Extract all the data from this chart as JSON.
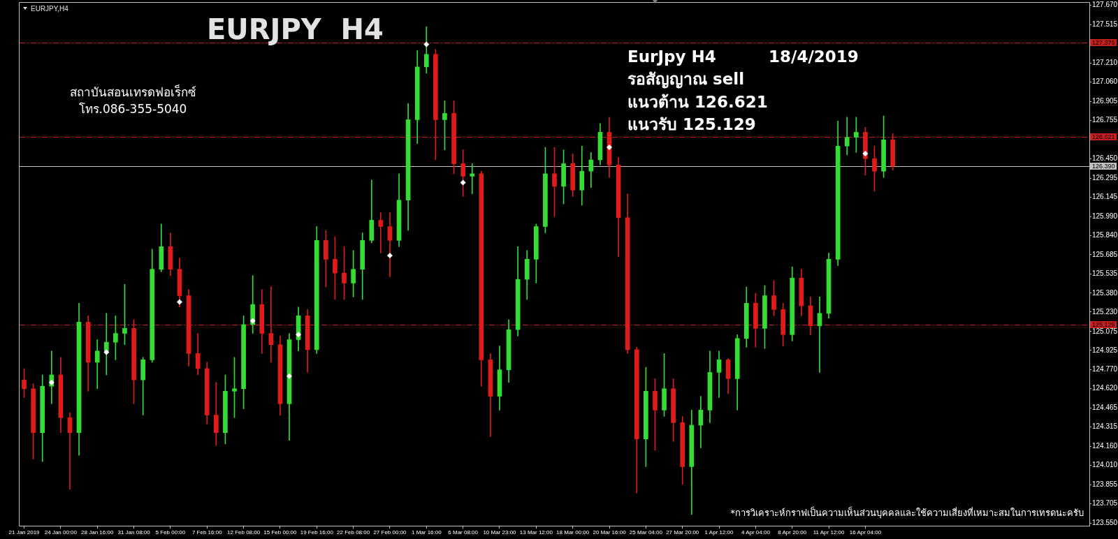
{
  "chart_data": {
    "type": "candlestick",
    "title": "EURJPY  H4",
    "annotations": [
      "EURJPY,H4",
      "สถาบันสอนเทรดฟอเร็กซ์",
      "โทร.086-355-5040",
      "EurJpy H4",
      "18/4/2019",
      "รอสัญญาณ sell",
      "แนวต้าน 126.621",
      "แนวรับ 125.129",
      "*การวิเคราะห์กราฟเป็นความเห็นส่วนบุคคลและใช้ความเสี่ยงที่เหมาะสมในการเทรดนะครับ"
    ],
    "categories": [
      "21 Jan 2019",
      null,
      null,
      null,
      "24 Jan 00:00",
      null,
      null,
      null,
      "28 Jan 16:00",
      null,
      null,
      null,
      "31 Jan 08:00",
      null,
      null,
      null,
      "5 Feb 00:00",
      null,
      null,
      null,
      "7 Feb 16:00",
      null,
      null,
      null,
      "12 Feb 08:00",
      null,
      null,
      null,
      "15 Feb 00:00",
      null,
      null,
      null,
      "19 Feb 16:00",
      null,
      null,
      null,
      "22 Feb 08:00",
      null,
      null,
      null,
      "27 Feb 00:00",
      null,
      null,
      null,
      "1 Mar 16:00",
      null,
      null,
      null,
      "6 Mar 08:00",
      null,
      null,
      null,
      "10 Mar 23:00",
      null,
      null,
      null,
      "13 Mar 12:00",
      null,
      null,
      null,
      "18 Mar 00:00",
      null,
      null,
      null,
      "20 Mar 16:00",
      null,
      null,
      null,
      "25 Mar 04:00",
      null,
      null,
      null,
      "27 Mar 20:00",
      null,
      null,
      null,
      "1 Apr 12:00",
      null,
      null,
      null,
      "4 Apr 04:00",
      null,
      null,
      null,
      "8 Apr 20:00",
      null,
      null,
      null,
      "11 Apr 12:00",
      null,
      null,
      null,
      "16 Apr 04:00",
      null,
      null,
      null,
      null,
      null,
      null,
      null,
      null,
      null,
      null,
      null,
      null,
      null,
      null,
      null,
      null,
      null,
      null,
      null,
      null,
      null,
      null,
      null,
      null
    ],
    "ohlc": [
      [
        124.69,
        124.78,
        124.55,
        124.62
      ],
      [
        124.62,
        124.66,
        124.06,
        124.27
      ],
      [
        124.27,
        124.73,
        124.04,
        124.64
      ],
      [
        124.64,
        124.92,
        124.5,
        124.73
      ],
      [
        124.73,
        124.87,
        124.27,
        124.39
      ],
      [
        124.39,
        124.43,
        123.82,
        124.27
      ],
      [
        124.27,
        125.3,
        124.09,
        125.15
      ],
      [
        125.15,
        125.2,
        124.6,
        124.83
      ],
      [
        124.83,
        125.01,
        124.62,
        124.92
      ],
      [
        124.92,
        125.22,
        124.73,
        124.99
      ],
      [
        124.99,
        125.2,
        124.85,
        125.06
      ],
      [
        125.06,
        125.45,
        124.97,
        125.1
      ],
      [
        125.1,
        125.17,
        124.5,
        124.69
      ],
      [
        124.69,
        124.87,
        124.41,
        124.85
      ],
      [
        124.85,
        125.73,
        124.83,
        125.57
      ],
      [
        125.57,
        125.93,
        125.55,
        125.75
      ],
      [
        125.75,
        125.86,
        125.52,
        125.57
      ],
      [
        125.57,
        125.66,
        125.27,
        125.36
      ],
      [
        125.36,
        125.41,
        124.8,
        124.9
      ],
      [
        124.9,
        125.06,
        124.73,
        124.78
      ],
      [
        124.78,
        124.83,
        124.34,
        124.41
      ],
      [
        124.41,
        124.67,
        124.17,
        124.27
      ],
      [
        124.27,
        124.73,
        124.18,
        124.6
      ],
      [
        124.6,
        124.87,
        124.39,
        124.62
      ],
      [
        124.62,
        125.2,
        124.46,
        125.13
      ],
      [
        125.13,
        125.52,
        125.06,
        125.29
      ],
      [
        125.29,
        125.41,
        124.9,
        125.06
      ],
      [
        125.06,
        125.43,
        124.83,
        124.97
      ],
      [
        124.97,
        125.04,
        124.41,
        124.5
      ],
      [
        124.5,
        125.06,
        124.21,
        125.01
      ],
      [
        125.01,
        125.27,
        124.92,
        125.2
      ],
      [
        125.2,
        125.25,
        124.75,
        124.93
      ],
      [
        124.93,
        125.91,
        124.9,
        125.8
      ],
      [
        125.8,
        125.88,
        125.43,
        125.65
      ],
      [
        125.65,
        125.83,
        125.33,
        125.54
      ],
      [
        125.54,
        125.75,
        125.33,
        125.46
      ],
      [
        125.46,
        125.72,
        125.35,
        125.57
      ],
      [
        125.57,
        125.86,
        125.33,
        125.8
      ],
      [
        125.8,
        126.28,
        125.78,
        125.96
      ],
      [
        125.96,
        126.02,
        125.7,
        125.91
      ],
      [
        125.91,
        126.02,
        125.51,
        125.8
      ],
      [
        125.8,
        126.33,
        125.75,
        126.12
      ],
      [
        126.12,
        126.89,
        125.88,
        126.76
      ],
      [
        126.76,
        127.31,
        126.57,
        127.18
      ],
      [
        127.18,
        127.5,
        127.13,
        127.28
      ],
      [
        127.28,
        127.32,
        126.44,
        126.76
      ],
      [
        126.76,
        126.91,
        126.52,
        126.81
      ],
      [
        126.81,
        126.91,
        126.33,
        126.41
      ],
      [
        126.41,
        126.52,
        126.15,
        126.31
      ],
      [
        126.31,
        126.41,
        126.17,
        126.33
      ],
      [
        126.33,
        126.35,
        124.64,
        124.85
      ],
      [
        124.85,
        124.9,
        124.24,
        124.56
      ],
      [
        124.56,
        124.96,
        124.45,
        124.77
      ],
      [
        124.77,
        125.17,
        124.67,
        125.09
      ],
      [
        125.09,
        125.75,
        125.04,
        125.49
      ],
      [
        125.49,
        125.72,
        125.33,
        125.65
      ],
      [
        125.65,
        125.93,
        125.46,
        125.91
      ],
      [
        125.91,
        126.54,
        125.86,
        126.33
      ],
      [
        126.33,
        126.54,
        125.99,
        126.23
      ],
      [
        126.23,
        126.52,
        126.09,
        126.41
      ],
      [
        126.41,
        126.49,
        126.15,
        126.2
      ],
      [
        126.2,
        126.55,
        126.08,
        126.35
      ],
      [
        126.35,
        126.5,
        126.22,
        126.44
      ],
      [
        126.44,
        126.73,
        126.4,
        126.66
      ],
      [
        126.66,
        126.78,
        126.3,
        126.4
      ],
      [
        126.4,
        126.46,
        125.67,
        125.98
      ],
      [
        125.98,
        126.17,
        124.9,
        124.93
      ],
      [
        124.93,
        124.95,
        123.79,
        124.22
      ],
      [
        124.22,
        124.79,
        124.0,
        124.6
      ],
      [
        124.6,
        124.7,
        124.13,
        124.45
      ],
      [
        124.45,
        124.9,
        124.4,
        124.62
      ],
      [
        124.62,
        124.7,
        124.2,
        124.35
      ],
      [
        124.35,
        124.4,
        123.86,
        124.0
      ],
      [
        124.0,
        124.45,
        123.62,
        124.33
      ],
      [
        124.33,
        124.56,
        124.15,
        124.45
      ],
      [
        124.45,
        124.92,
        124.35,
        124.75
      ],
      [
        124.75,
        124.92,
        124.55,
        124.85
      ],
      [
        124.85,
        124.86,
        124.58,
        124.7
      ],
      [
        124.7,
        125.05,
        124.45,
        125.02
      ],
      [
        125.02,
        125.43,
        124.95,
        125.3
      ],
      [
        125.3,
        125.38,
        124.95,
        125.1
      ],
      [
        125.1,
        125.44,
        124.94,
        125.36
      ],
      [
        125.36,
        125.48,
        125.2,
        125.25
      ],
      [
        125.25,
        125.3,
        124.96,
        125.05
      ],
      [
        125.05,
        125.59,
        125.0,
        125.5
      ],
      [
        125.5,
        125.57,
        125.2,
        125.28
      ],
      [
        125.28,
        125.35,
        125.05,
        125.12
      ],
      [
        125.12,
        125.35,
        124.75,
        125.22
      ],
      [
        125.22,
        125.7,
        125.18,
        125.65
      ],
      [
        125.65,
        126.75,
        125.6,
        126.55
      ],
      [
        126.55,
        126.78,
        126.48,
        126.62
      ],
      [
        126.62,
        126.78,
        126.5,
        126.66
      ],
      [
        126.66,
        126.7,
        126.32,
        126.45
      ],
      [
        126.45,
        126.55,
        126.19,
        126.35
      ],
      [
        126.35,
        126.79,
        126.3,
        126.6
      ],
      [
        126.6,
        126.65,
        126.36,
        126.39
      ],
      null,
      null,
      null,
      null,
      null,
      null,
      null,
      null,
      null,
      null,
      null,
      null,
      null,
      null,
      null,
      null,
      null,
      null,
      null,
      null,
      null
    ],
    "colors": [
      "#e01b1b",
      "#e01b1b",
      "#33dd33",
      "#33dd33",
      "#e01b1b",
      "#e01b1b",
      "#33dd33",
      "#e01b1b",
      "#33dd33",
      "#33dd33",
      "#33dd33",
      "#33dd33",
      "#e01b1b",
      "#33dd33",
      "#33dd33",
      "#33dd33",
      "#e01b1b",
      "#e01b1b",
      "#e01b1b",
      "#e01b1b",
      "#e01b1b",
      "#e01b1b",
      "#33dd33",
      "#33dd33",
      "#33dd33",
      "#33dd33",
      "#e01b1b",
      "#e01b1b",
      "#e01b1b",
      "#33dd33",
      "#33dd33",
      "#e01b1b",
      "#33dd33",
      "#e01b1b",
      "#e01b1b",
      "#e01b1b",
      "#33dd33",
      "#33dd33",
      "#33dd33",
      "#e01b1b",
      "#e01b1b",
      "#33dd33",
      "#33dd33",
      "#33dd33",
      "#33dd33",
      "#e01b1b",
      "#33dd33",
      "#e01b1b",
      "#e01b1b",
      "#33dd33",
      "#e01b1b",
      "#e01b1b",
      "#33dd33",
      "#33dd33",
      "#33dd33",
      "#33dd33",
      "#33dd33",
      "#33dd33",
      "#e01b1b",
      "#33dd33",
      "#e01b1b",
      "#33dd33",
      "#33dd33",
      "#33dd33",
      "#e01b1b",
      "#e01b1b",
      "#e01b1b",
      "#e01b1b",
      "#33dd33",
      "#e01b1b",
      "#33dd33",
      "#e01b1b",
      "#e01b1b",
      "#33dd33",
      "#33dd33",
      "#33dd33",
      "#33dd33",
      "#e01b1b",
      "#33dd33",
      "#33dd33",
      "#e01b1b",
      "#33dd33",
      "#e01b1b",
      "#e01b1b",
      "#33dd33",
      "#e01b1b",
      "#e01b1b",
      "#33dd33",
      "#33dd33",
      "#33dd33",
      "#33dd33",
      "#33dd33",
      "#e01b1b",
      "#e01b1b",
      "#33dd33",
      "#e01b1b",
      null,
      null,
      null,
      null,
      null,
      null,
      null,
      null,
      null,
      null,
      null,
      null,
      null,
      null,
      null,
      null,
      null,
      null,
      null,
      null,
      null
    ],
    "series": [
      {
        "type": "scatter",
        "color": "#ffffff",
        "marker": "diamond",
        "values": [
          null,
          null,
          null,
          124.67,
          null,
          null,
          null,
          null,
          null,
          124.91,
          null,
          null,
          null,
          null,
          null,
          null,
          null,
          125.31,
          null,
          null,
          null,
          null,
          null,
          null,
          null,
          125.16,
          null,
          null,
          null,
          124.72,
          125.05,
          null,
          null,
          null,
          null,
          null,
          null,
          null,
          null,
          null,
          125.68,
          null,
          null,
          null,
          127.36,
          null,
          null,
          null,
          126.26,
          null,
          null,
          null,
          null,
          null,
          null,
          null,
          null,
          null,
          null,
          null,
          null,
          null,
          null,
          null,
          126.54,
          null,
          null,
          null,
          null,
          null,
          null,
          null,
          null,
          null,
          null,
          null,
          null,
          null,
          null,
          null,
          null,
          null,
          null,
          null,
          null,
          null,
          null,
          null,
          null,
          null,
          null,
          null,
          126.49,
          null,
          null,
          null,
          null,
          null,
          null,
          null,
          null,
          null,
          null,
          null,
          null,
          null,
          null,
          null,
          null,
          null,
          null,
          null,
          null,
          null,
          null,
          null,
          null
        ]
      }
    ],
    "ylim": [
      123.53,
      127.69
    ],
    "yticks": [
      {
        "value": 127.67,
        "label": "127.670"
      },
      {
        "value": 127.515,
        "label": "127.515"
      },
      {
        "value": 127.21,
        "label": "127.210"
      },
      {
        "value": 127.06,
        "label": "127.060"
      },
      {
        "value": 126.905,
        "label": "126.905"
      },
      {
        "value": 126.755,
        "label": "126.755"
      },
      {
        "value": 126.45,
        "label": "126.450"
      },
      {
        "value": 126.295,
        "label": "126.295"
      },
      {
        "value": 126.145,
        "label": "126.145"
      },
      {
        "value": 125.99,
        "label": "125.990"
      },
      {
        "value": 125.84,
        "label": "125.840"
      },
      {
        "value": 125.685,
        "label": "125.685"
      },
      {
        "value": 125.535,
        "label": "125.535"
      },
      {
        "value": 125.38,
        "label": "125.380"
      },
      {
        "value": 125.23,
        "label": "125.230"
      },
      {
        "value": 125.075,
        "label": "125.075"
      },
      {
        "value": 124.925,
        "label": "124.925"
      },
      {
        "value": 124.77,
        "label": "124.770"
      },
      {
        "value": 124.62,
        "label": "124.620"
      },
      {
        "value": 124.465,
        "label": "124.465"
      },
      {
        "value": 124.315,
        "label": "124.315"
      },
      {
        "value": 124.16,
        "label": "124.160"
      },
      {
        "value": 124.01,
        "label": "124.010"
      },
      {
        "value": 123.855,
        "label": "123.855"
      },
      {
        "value": 123.705,
        "label": "123.705"
      },
      {
        "value": 123.55,
        "label": "123.550"
      }
    ],
    "ref_lines": [
      {
        "axis": "y",
        "value": 127.376,
        "label": "127.376",
        "color": "#c81e1e",
        "line_style": "dashed"
      },
      {
        "axis": "y",
        "value": 126.621,
        "label": "126.621",
        "color": "#c81e1e",
        "line_style": "dashed"
      },
      {
        "axis": "y",
        "value": 126.39,
        "label": "126.390",
        "color": "#c0c0c0",
        "line_style": "solid"
      },
      {
        "axis": "y",
        "value": 125.129,
        "label": "125.129",
        "color": "#c81e1e",
        "line_style": "dashed"
      }
    ],
    "grid": false,
    "legend": false
  }
}
